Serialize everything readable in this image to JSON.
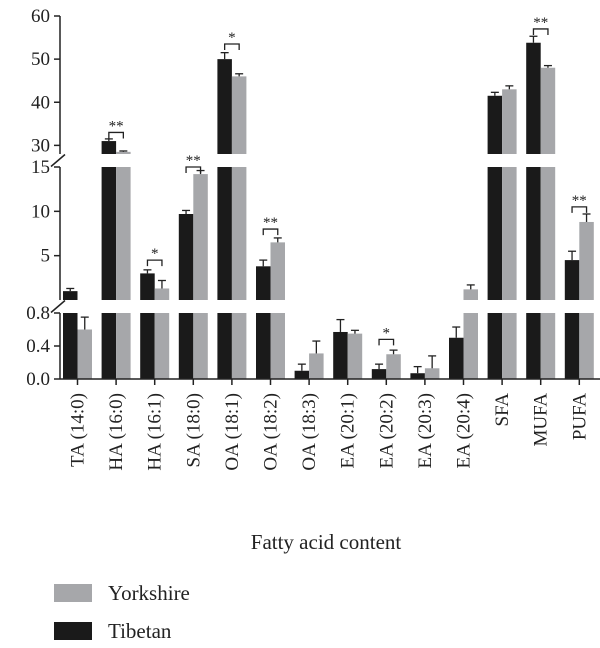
{
  "chart_data": {
    "type": "bar",
    "xlabel": "Fatty acid content",
    "ylabel": "",
    "categories": [
      "TA (14:0)",
      "HA (16:0)",
      "HA (16:1)",
      "SA (18:0)",
      "OA (18:1)",
      "OA (18:2)",
      "OA (18:3)",
      "EA (20:1)",
      "EA (20:2)",
      "EA (20:3)",
      "EA (20:4)",
      "SFA",
      "MUFA",
      "PUFA"
    ],
    "series": [
      {
        "name": "Tibetan",
        "color": "#1a1a1a",
        "values": [
          1.0,
          31.0,
          3.0,
          9.7,
          50.0,
          3.8,
          0.1,
          0.57,
          0.12,
          0.07,
          0.5,
          41.5,
          53.8,
          4.5
        ],
        "errors": [
          0.3,
          0.5,
          0.4,
          0.4,
          1.5,
          0.7,
          0.08,
          0.15,
          0.06,
          0.08,
          0.13,
          0.8,
          1.5,
          1.0
        ]
      },
      {
        "name": "Yorkshire",
        "color": "#a6a7aa",
        "values": [
          0.6,
          28.5,
          1.3,
          14.2,
          46.0,
          6.5,
          0.31,
          0.55,
          0.3,
          0.13,
          1.2,
          43.0,
          48.0,
          8.8
        ],
        "errors": [
          0.15,
          0.2,
          0.9,
          0.4,
          0.6,
          0.5,
          0.15,
          0.04,
          0.05,
          0.15,
          0.5,
          0.8,
          0.5,
          0.9
        ]
      }
    ],
    "y_segments": [
      {
        "range": [
          0,
          0.8
        ],
        "ticks": [
          0.0,
          0.4,
          0.8
        ],
        "tick_labels": [
          "0.0",
          "0.4",
          "0.8"
        ]
      },
      {
        "range": [
          0,
          15
        ],
        "ticks": [
          5,
          10,
          15
        ],
        "tick_labels": [
          "5",
          "10",
          "15"
        ]
      },
      {
        "range": [
          28,
          60
        ],
        "ticks": [
          30,
          40,
          50,
          60
        ],
        "tick_labels": [
          "30",
          "40",
          "50",
          "60"
        ]
      }
    ],
    "annotations": [
      {
        "category": "HA (16:0)",
        "label": "**",
        "y": 33
      },
      {
        "category": "HA (16:1)",
        "label": "*",
        "y": 4.5
      },
      {
        "category": "SA (18:0)",
        "label": "**",
        "y": 15
      },
      {
        "category": "OA (18:1)",
        "label": "*",
        "y": 53.5
      },
      {
        "category": "OA (18:2)",
        "label": "**",
        "y": 8
      },
      {
        "category": "EA (20:2)",
        "label": "*",
        "y": 0.48
      },
      {
        "category": "MUFA",
        "label": "**",
        "y": 57
      },
      {
        "category": "PUFA",
        "label": "**",
        "y": 10.5
      }
    ],
    "legend": {
      "position": "bottom-left",
      "order": [
        "Yorkshire",
        "Tibetan"
      ]
    }
  }
}
